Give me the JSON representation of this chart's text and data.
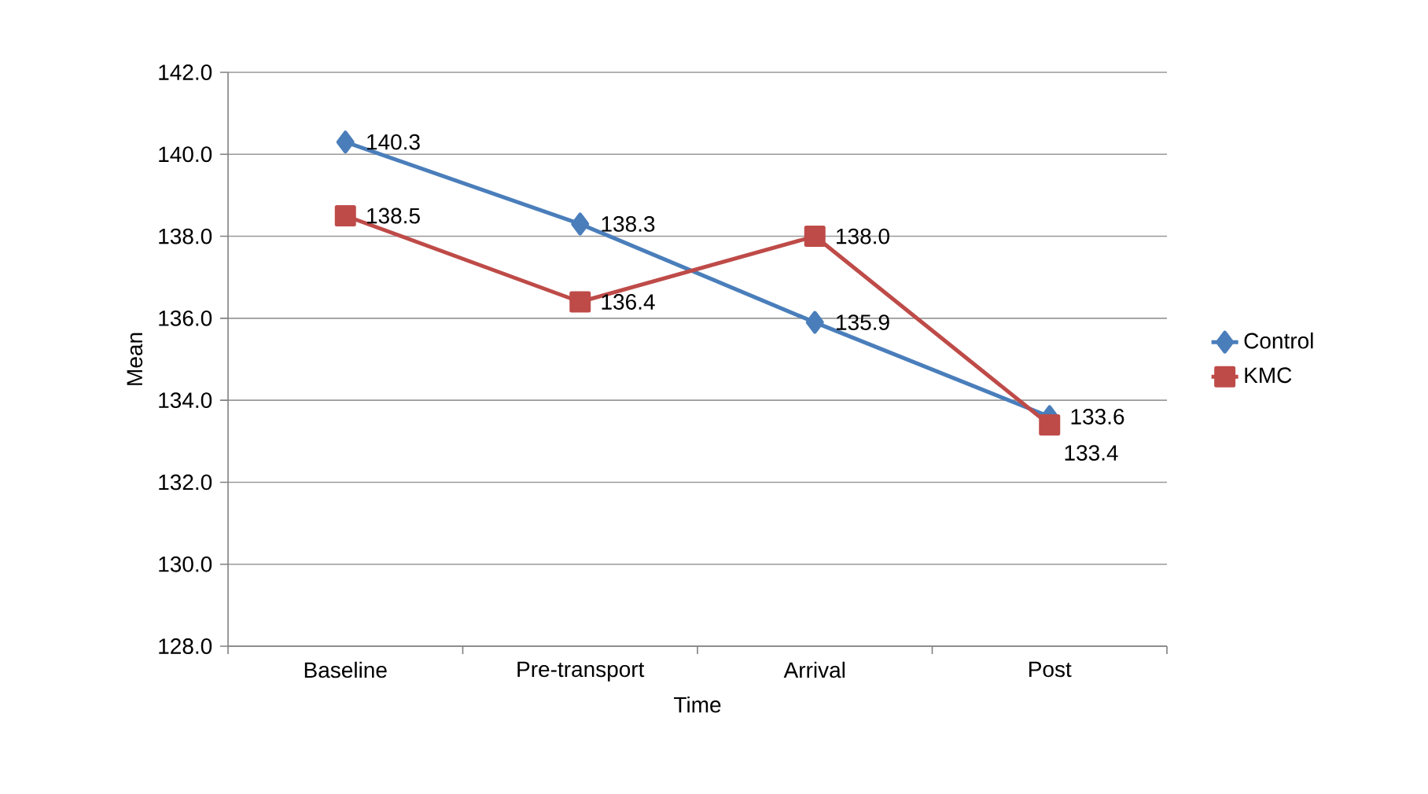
{
  "chart_data": {
    "type": "line",
    "xlabel": "Time",
    "ylabel": "Mean",
    "categories": [
      "Baseline",
      "Pre-transport",
      "Arrival",
      "Post"
    ],
    "series": [
      {
        "name": "Control",
        "color": "#4a7ebb",
        "marker": "diamond",
        "values": [
          140.3,
          138.3,
          135.9,
          133.6
        ],
        "value_labels": [
          "140.3",
          "138.3",
          "135.9",
          "133.6"
        ]
      },
      {
        "name": "KMC",
        "color": "#be4b48",
        "marker": "square",
        "values": [
          138.5,
          136.4,
          138.0,
          133.4
        ],
        "value_labels": [
          "138.5",
          "136.4",
          "138.0",
          "133.4"
        ]
      }
    ],
    "ylim": [
      128,
      142
    ],
    "yticks": [
      {
        "value": 128,
        "label": "128.0"
      },
      {
        "value": 130,
        "label": "130.0"
      },
      {
        "value": 132,
        "label": "132.0"
      },
      {
        "value": 134,
        "label": "134.0"
      },
      {
        "value": 136,
        "label": "136.0"
      },
      {
        "value": 138,
        "label": "138.0"
      },
      {
        "value": 140,
        "label": "140.0"
      },
      {
        "value": 142,
        "label": "142.0"
      }
    ],
    "grid": "y",
    "legend": "right",
    "line_style": "solid"
  }
}
